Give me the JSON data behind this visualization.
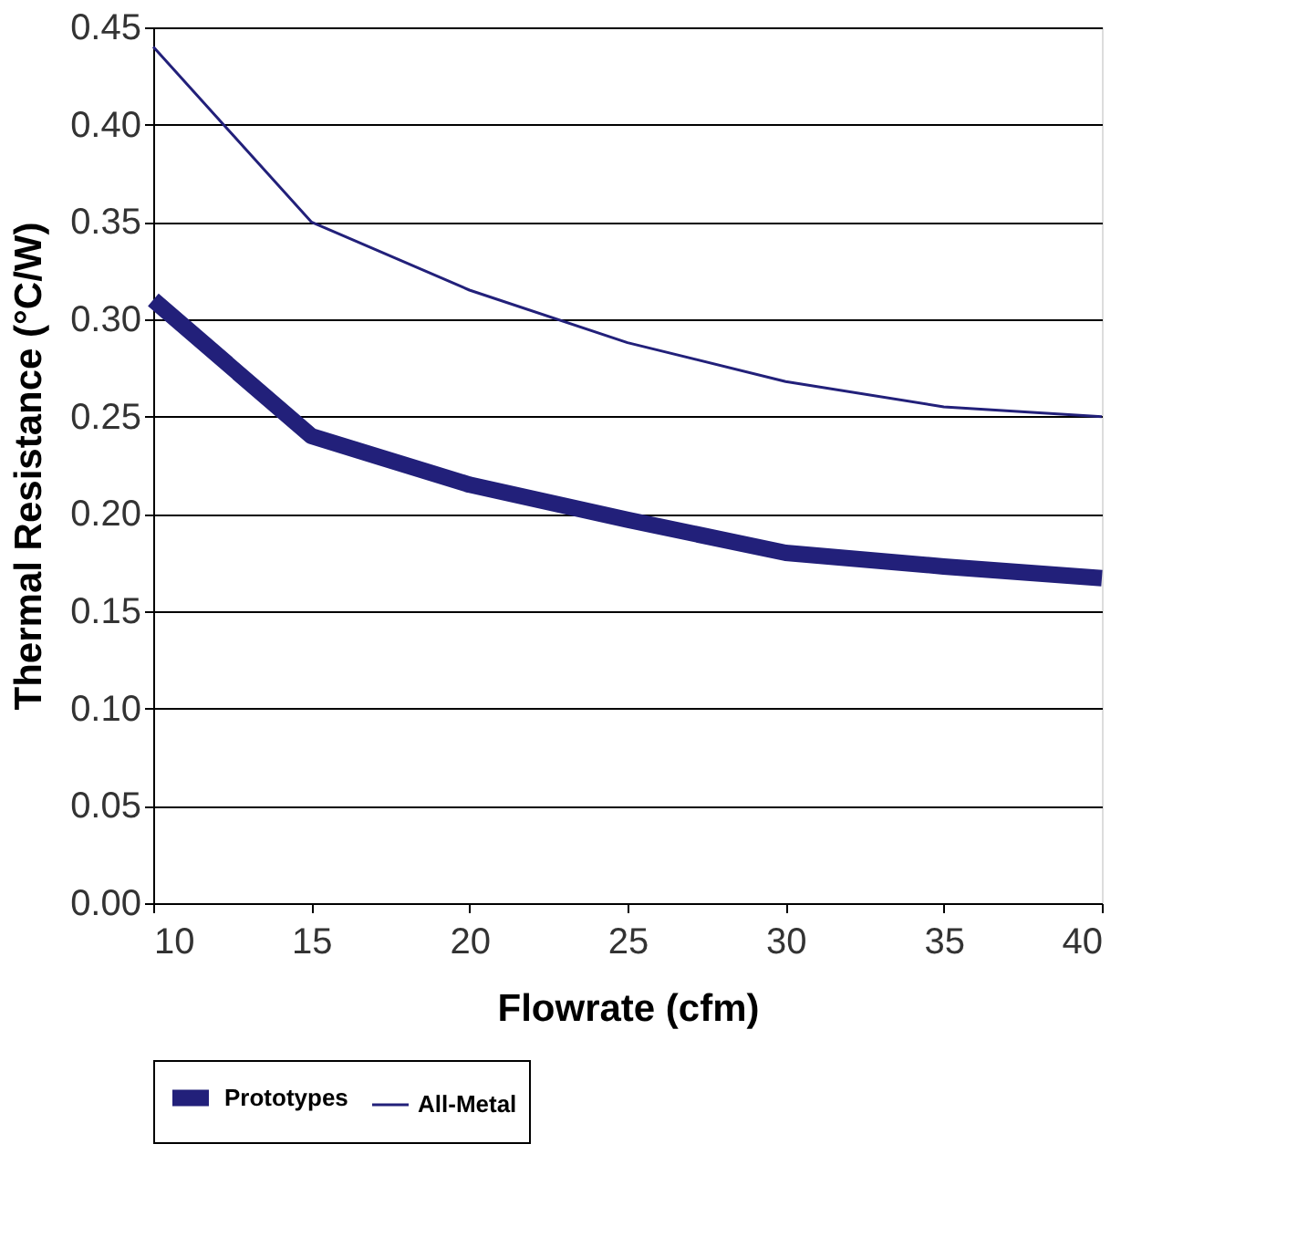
{
  "chart_data": {
    "type": "line",
    "xlabel": "Flowrate (cfm)",
    "ylabel": "Thermal Resistance (°C/W)",
    "x": [
      10,
      15,
      20,
      25,
      30,
      35,
      40
    ],
    "series": [
      {
        "name": "Prototypes",
        "color": "#22207a",
        "values": [
          0.31,
          0.24,
          0.215,
          0.197,
          0.18,
          0.173,
          0.167
        ]
      },
      {
        "name": "All-Metal",
        "color": "#22207a",
        "values": [
          0.44,
          0.35,
          0.315,
          0.288,
          0.268,
          0.255,
          0.25
        ]
      }
    ],
    "xlim": [
      10,
      40
    ],
    "xticks": [
      10,
      15,
      20,
      25,
      30,
      35,
      40
    ],
    "ylim": [
      0,
      0.45
    ],
    "yticks": [
      {
        "value": 0,
        "label": "0.00"
      },
      0.05,
      {
        "value": 0.1,
        "label": "0.10"
      },
      0.15,
      {
        "value": 0.2,
        "label": "0.20"
      },
      0.25,
      {
        "value": 0.3,
        "label": "0.30"
      },
      0.35,
      {
        "value": 0.4,
        "label": "0.40"
      },
      0.45
    ],
    "grid": "y",
    "legend": "bottom",
    "marker": "none",
    "line_style": "solid"
  }
}
